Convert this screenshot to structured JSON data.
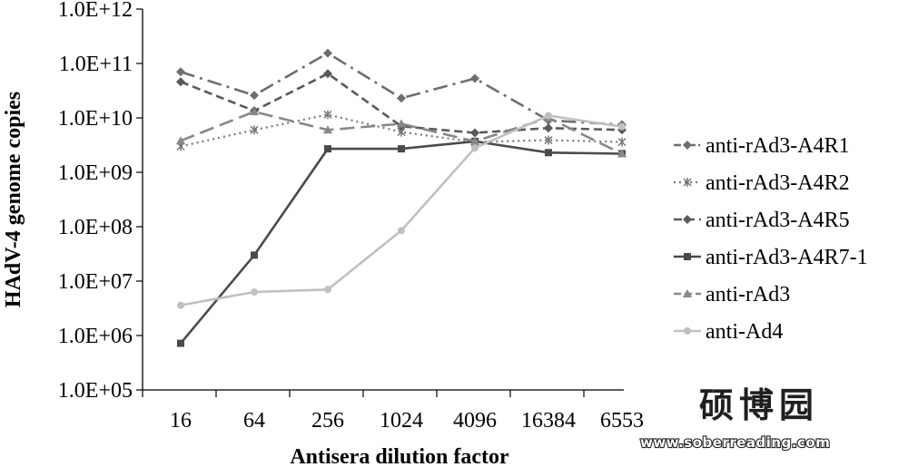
{
  "chart_data": {
    "type": "line",
    "title": "",
    "xlabel": "Antisera dilution factor",
    "ylabel": "HAdV-4 genome copies",
    "y_scale": "log",
    "ylim": [
      100000,
      1000000000000
    ],
    "y_ticks": [
      "1.0E+05",
      "1.0E+06",
      "1.0E+07",
      "1.0E+08",
      "1.0E+09",
      "1.0E+10",
      "1.0E+11",
      "1.0E+12"
    ],
    "categories": [
      "16",
      "64",
      "256",
      "1024",
      "4096",
      "16384",
      "6553"
    ],
    "grid": false,
    "legend_position": "right",
    "series": [
      {
        "name": "anti-rAd3-A4R1",
        "color": "#6e6e6e",
        "dash": "dashdot",
        "marker": "diamond",
        "values": [
          70000000000,
          26000000000,
          155000000000,
          23000000000,
          53000000000,
          9000000000,
          7500000000
        ]
      },
      {
        "name": "anti-rAd3-A4R2",
        "color": "#777777",
        "dash": "dotted",
        "marker": "star",
        "values": [
          3000000000,
          6000000000,
          11500000000,
          5500000000,
          3600000000,
          3900000000,
          3600000000
        ]
      },
      {
        "name": "anti-rAd3-A4R5",
        "color": "#5a5a5a",
        "dash": "dashed",
        "marker": "diamond",
        "values": [
          46000000000,
          13500000000,
          65000000000,
          7000000000,
          5300000000,
          6500000000,
          6000000000
        ]
      },
      {
        "name": "anti-rAd3-A4R7-1",
        "color": "#4a4a4a",
        "dash": "solid",
        "marker": "square",
        "values": [
          720000,
          30000000,
          2700000000,
          2700000000,
          3700000000,
          2300000000,
          2200000000
        ]
      },
      {
        "name": "anti-rAd3",
        "color": "#888888",
        "dash": "longdash",
        "marker": "triangle",
        "values": [
          3800000000,
          13000000000,
          6000000000,
          7800000000,
          3700000000,
          10000000000,
          2200000000
        ]
      },
      {
        "name": "anti-Ad4",
        "color": "#c0c0c0",
        "dash": "solid",
        "marker": "circle",
        "values": [
          3600000,
          6300000,
          7000000,
          85000000,
          2800000000,
          11000000000,
          6900000000
        ]
      }
    ]
  },
  "watermark": {
    "chinese": "硕博园",
    "url": "www.soberreading.com"
  }
}
